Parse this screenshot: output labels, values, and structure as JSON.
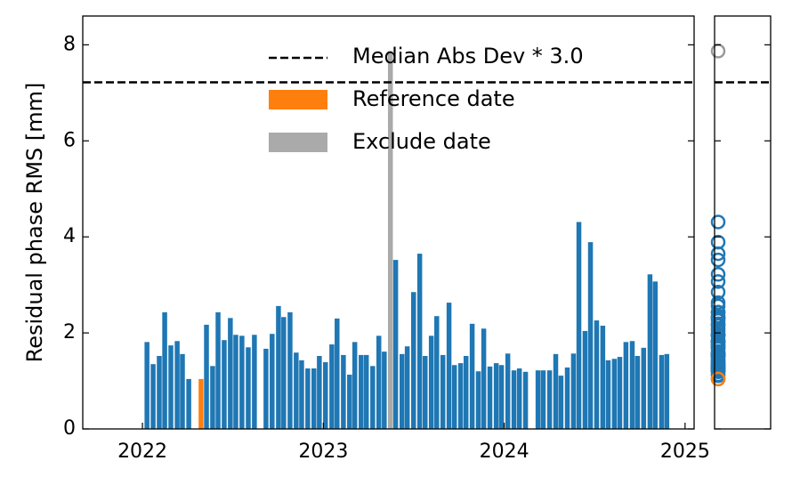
{
  "chart_data": {
    "type": "bar",
    "ylabel": "Residual phase RMS [mm]",
    "xlim": [
      2021.67,
      2025.05
    ],
    "xticks": [
      2022,
      2023,
      2024,
      2025
    ],
    "ylim": [
      0,
      8.6
    ],
    "yticks": [
      0,
      2,
      4,
      6,
      8
    ],
    "threshold": {
      "name": "Median Abs Dev * 3.0",
      "value": 7.22,
      "color": "#000000"
    },
    "series": [
      {
        "color": "#1f77b4",
        "x": [
          2022.025,
          2022.059,
          2022.093,
          2022.123,
          2022.157,
          2022.192,
          2022.221,
          2022.256,
          2022.354,
          2022.388,
          2022.418,
          2022.452,
          2022.486,
          2022.516,
          2022.55,
          2022.585,
          2022.619,
          2022.683,
          2022.717,
          2022.752,
          2022.781,
          2022.816,
          2022.85,
          2022.88,
          2022.914,
          2022.948,
          2022.978,
          2023.012,
          2023.047,
          2023.076,
          2023.111,
          2023.145,
          2023.174,
          2023.209,
          2023.238,
          2023.273,
          2023.307,
          2023.337,
          2023.4,
          2023.435,
          2023.464,
          2023.499,
          2023.533,
          2023.563,
          2023.597,
          2023.627,
          2023.661,
          2023.695,
          2023.725,
          2023.759,
          2023.789,
          2023.823,
          2023.857,
          2023.887,
          2023.921,
          2023.956,
          2023.985,
          2024.02,
          2024.054,
          2024.084,
          2024.118,
          2024.187,
          2024.216,
          2024.251,
          2024.285,
          2024.314,
          2024.349,
          2024.383,
          2024.413,
          2024.447,
          2024.477,
          2024.511,
          2024.545,
          2024.575,
          2024.609,
          2024.639,
          2024.673,
          2024.708,
          2024.737,
          2024.771,
          2024.806,
          2024.835,
          2024.87,
          2024.899
        ],
        "values": [
          1.81,
          1.35,
          1.52,
          2.43,
          1.74,
          1.83,
          1.56,
          1.04,
          2.17,
          1.31,
          2.43,
          1.85,
          2.31,
          1.96,
          1.94,
          1.7,
          1.96,
          1.67,
          1.98,
          2.56,
          2.33,
          2.43,
          1.59,
          1.43,
          1.26,
          1.26,
          1.52,
          1.39,
          1.76,
          2.3,
          1.54,
          1.13,
          1.81,
          1.54,
          1.54,
          1.31,
          1.94,
          1.61,
          3.52,
          1.56,
          1.72,
          2.85,
          3.65,
          1.52,
          1.94,
          2.35,
          1.54,
          2.63,
          1.33,
          1.37,
          1.52,
          2.19,
          1.2,
          2.09,
          1.3,
          1.37,
          1.33,
          1.57,
          1.22,
          1.26,
          1.19,
          1.22,
          1.22,
          1.22,
          1.56,
          1.11,
          1.28,
          1.57,
          4.31,
          2.04,
          3.89,
          2.26,
          2.15,
          1.43,
          1.46,
          1.5,
          1.81,
          1.83,
          1.52,
          1.69,
          3.22,
          3.07,
          1.54,
          1.56
        ]
      },
      {
        "name": "Reference date",
        "color": "#ff7f0e",
        "x": [
          2022.324
        ],
        "values": [
          1.04
        ]
      },
      {
        "name": "Exclude date",
        "color": "#aaaaaa",
        "x": [
          2023.371
        ],
        "values": [
          7.87
        ]
      }
    ]
  }
}
